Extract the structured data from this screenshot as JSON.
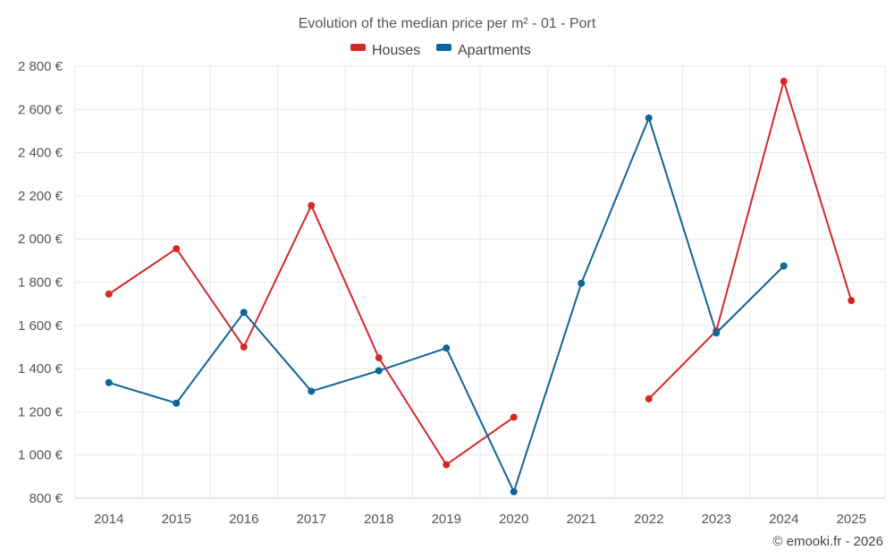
{
  "chart_data": {
    "type": "line",
    "title": "Evolution of the median price per m² - 01 - Port",
    "categories": [
      "2014",
      "2015",
      "2016",
      "2017",
      "2018",
      "2019",
      "2020",
      "2021",
      "2022",
      "2023",
      "2024",
      "2025"
    ],
    "series": [
      {
        "name": "Houses",
        "color": "#d62728",
        "values": [
          1745,
          1955,
          1500,
          2155,
          1450,
          955,
          1175,
          null,
          1260,
          1575,
          2730,
          1715
        ]
      },
      {
        "name": "Apartments",
        "color": "#0f6597",
        "values": [
          1335,
          1240,
          1660,
          1295,
          1390,
          1495,
          830,
          1795,
          2560,
          1565,
          1875,
          null
        ]
      }
    ],
    "ylim": [
      800,
      2800
    ],
    "yticks": [
      800,
      1000,
      1200,
      1400,
      1600,
      1800,
      2000,
      2200,
      2400,
      2600,
      2800
    ],
    "ytick_labels": [
      "800 €",
      "1 000 €",
      "1 200 €",
      "1 400 €",
      "1 600 €",
      "1 800 €",
      "2 000 €",
      "2 200 €",
      "2 400 €",
      "2 600 €",
      "2 800 €"
    ],
    "xlabel": "",
    "ylabel": "",
    "grid": true,
    "legend_position": "top-center"
  },
  "credit": "© emooki.fr - 2026"
}
